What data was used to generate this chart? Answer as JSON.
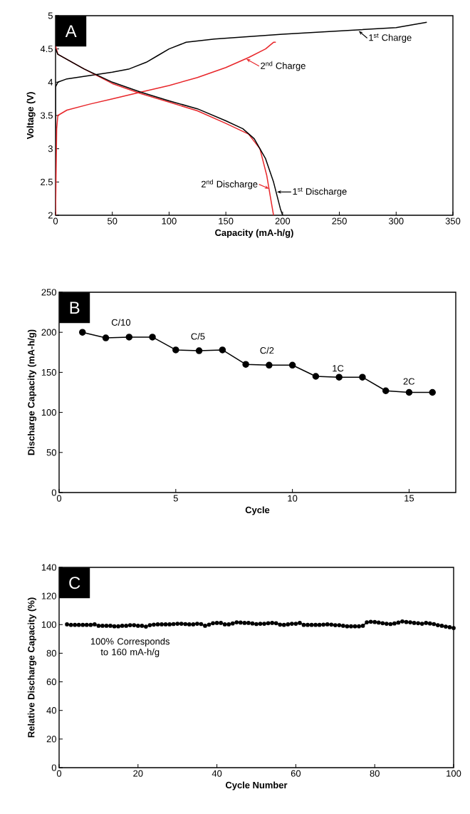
{
  "chart_data": [
    {
      "type": "line",
      "title": "A",
      "xlabel": "Capacity (mA-h/g)",
      "ylabel": "Voltage (V)",
      "xlim": [
        0,
        350
      ],
      "ylim": [
        2,
        5
      ],
      "xticks": [
        0,
        50,
        100,
        150,
        200,
        250,
        300,
        350
      ],
      "yticks": [
        2,
        2.5,
        3,
        3.5,
        4,
        4.5,
        5
      ],
      "marker": "none",
      "series": [
        {
          "color": "#000000",
          "x": [
            0,
            0,
            2,
            10,
            30,
            50,
            65,
            80,
            90,
            100,
            115,
            140,
            200,
            250,
            300,
            327
          ],
          "values": [
            2.0,
            3.93,
            4.0,
            4.05,
            4.1,
            4.15,
            4.2,
            4.3,
            4.4,
            4.5,
            4.6,
            4.65,
            4.72,
            4.77,
            4.82,
            4.9
          ]
        },
        {
          "color": "#e8262a",
          "x": [
            0,
            1,
            2,
            10,
            30,
            50,
            75,
            100,
            125,
            150,
            170,
            185,
            192,
            194
          ],
          "values": [
            2.0,
            3.3,
            3.5,
            3.58,
            3.67,
            3.75,
            3.85,
            3.95,
            4.07,
            4.22,
            4.37,
            4.5,
            4.6,
            4.6
          ]
        },
        {
          "color": "#e8262a",
          "x": [
            0,
            2,
            25,
            50,
            75,
            100,
            125,
            150,
            170,
            180,
            186,
            190,
            192
          ],
          "values": [
            4.55,
            4.42,
            4.2,
            3.98,
            3.83,
            3.7,
            3.57,
            3.38,
            3.22,
            3.0,
            2.6,
            2.2,
            2.0
          ]
        },
        {
          "color": "#000000",
          "x": [
            0,
            2,
            25,
            50,
            75,
            100,
            125,
            150,
            165,
            175,
            185,
            192,
            198,
            200
          ],
          "values": [
            4.5,
            4.42,
            4.2,
            4.0,
            3.85,
            3.72,
            3.6,
            3.42,
            3.3,
            3.15,
            2.85,
            2.5,
            2.1,
            2.0
          ]
        }
      ],
      "annotations": [
        {
          "text": "1$^{st}$ Charge",
          "x": 267,
          "y": 4.77
        },
        {
          "text": "2$^{nd}$ Charge",
          "x": 168,
          "y": 4.35
        },
        {
          "text": "2$^{nd}$ Discharge",
          "x": 188,
          "y": 2.4
        },
        {
          "text": "1$^{st}$ Discharge",
          "x": 195,
          "y": 2.35
        }
      ]
    },
    {
      "type": "line",
      "title": "B",
      "xlabel": "Cycle",
      "ylabel": "Discharge Capacity (mA-h/g)",
      "xlim": [
        0,
        17
      ],
      "ylim": [
        0,
        250
      ],
      "xticks": [
        0,
        5,
        10,
        15
      ],
      "yticks": [
        0,
        50,
        100,
        150,
        200,
        250
      ],
      "marker": "circle",
      "series": [
        {
          "color": "#000000",
          "x": [
            1,
            2,
            3,
            4,
            5,
            6,
            7,
            8,
            9,
            10,
            11,
            12,
            13,
            14,
            15,
            16
          ],
          "values": [
            200,
            193,
            194,
            194,
            178,
            177,
            178,
            160,
            159,
            159,
            145,
            144,
            144,
            127,
            125,
            125
          ]
        }
      ],
      "annotations": [
        "C/10",
        "C/5",
        "C/2",
        "1C",
        "2C"
      ]
    },
    {
      "type": "line",
      "title": "C",
      "xlabel": "Cycle Number",
      "ylabel": "Relative Discharge Capacity (%)",
      "xlim": [
        0,
        100
      ],
      "ylim": [
        0,
        140
      ],
      "xticks": [
        0,
        20,
        40,
        60,
        80,
        100
      ],
      "yticks": [
        0,
        20,
        40,
        60,
        80,
        100,
        120,
        140
      ],
      "marker": "circle",
      "series": [
        {
          "color": "#000000",
          "x": [
            2,
            3,
            4,
            5,
            6,
            7,
            8,
            9,
            10,
            11,
            12,
            13,
            14,
            15,
            16,
            17,
            18,
            19,
            20,
            21,
            22,
            23,
            24,
            25,
            26,
            27,
            28,
            29,
            30,
            31,
            32,
            33,
            34,
            35,
            36,
            37,
            38,
            39,
            40,
            41,
            42,
            43,
            44,
            45,
            46,
            47,
            48,
            49,
            50,
            51,
            52,
            53,
            54,
            55,
            56,
            57,
            58,
            59,
            60,
            61,
            62,
            63,
            64,
            65,
            66,
            67,
            68,
            69,
            70,
            71,
            72,
            73,
            74,
            75,
            76,
            77,
            78,
            79,
            80,
            81,
            82,
            83,
            84,
            85,
            86,
            87,
            88,
            89,
            90,
            91,
            92,
            93,
            94,
            95,
            96,
            97,
            98,
            99,
            100
          ],
          "values": [
            100.2,
            99.8,
            99.8,
            99.8,
            99.8,
            99.8,
            99.8,
            100.2,
            99.2,
            99.2,
            99.2,
            99.2,
            98.8,
            98.8,
            99.2,
            99.2,
            99.6,
            99.6,
            99.2,
            99.2,
            98.6,
            99.6,
            100.0,
            100.2,
            100.2,
            100.2,
            100.2,
            100.4,
            100.6,
            100.6,
            100.4,
            100.2,
            100.2,
            100.6,
            100.4,
            99.2,
            100.0,
            101.0,
            101.2,
            101.2,
            100.2,
            100.2,
            100.8,
            101.6,
            101.4,
            101.2,
            101.2,
            100.8,
            100.4,
            100.6,
            100.6,
            101.0,
            101.2,
            101.0,
            100.0,
            99.8,
            100.2,
            100.6,
            100.6,
            101.2,
            99.8,
            99.8,
            99.8,
            99.8,
            99.8,
            100.0,
            100.2,
            100.0,
            99.6,
            99.6,
            99.2,
            98.8,
            98.8,
            98.8,
            98.8,
            99.2,
            101.6,
            102.0,
            101.8,
            101.4,
            101.0,
            100.6,
            100.4,
            100.8,
            101.4,
            102.2,
            101.8,
            101.6,
            101.2,
            101.0,
            100.6,
            101.2,
            100.8,
            100.4,
            99.6,
            99.2,
            98.6,
            98.2,
            97.6
          ]
        }
      ],
      "annotations": [
        "100% Corresponds to 160 mA-h/g"
      ]
    }
  ]
}
